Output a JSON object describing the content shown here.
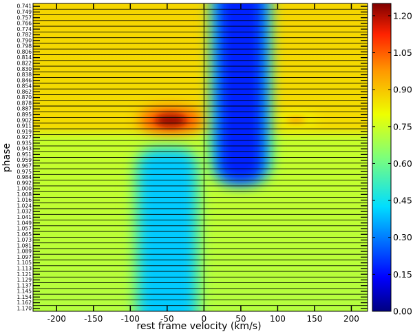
{
  "chart_data": {
    "type": "heatmap",
    "title": "",
    "xlabel": "rest frame velocity (km/s)",
    "ylabel": "phase",
    "xlim": [
      -232,
      222
    ],
    "x_ticks": [
      -200,
      -150,
      -100,
      -50,
      0,
      50,
      100,
      150,
      200
    ],
    "x_tick_labels": [
      "-200",
      "-150",
      "-100",
      "-50",
      "0",
      "50",
      "100",
      "150",
      "200"
    ],
    "phases": [
      "0.741",
      "0.749",
      "0.757",
      "0.766",
      "0.774",
      "0.782",
      "0.790",
      "0.798",
      "0.806",
      "0.814",
      "0.822",
      "0.830",
      "0.838",
      "0.846",
      "0.854",
      "0.862",
      "0.870",
      "0.878",
      "0.887",
      "0.895",
      "0.902",
      "0.911",
      "0.919",
      "0.927",
      "0.935",
      "0.943",
      "0.951",
      "0.959",
      "0.967",
      "0.975",
      "0.984",
      "0.992",
      "1.000",
      "1.008",
      "1.016",
      "1.024",
      "1.032",
      "1.041",
      "1.049",
      "1.057",
      "1.065",
      "1.073",
      "1.081",
      "1.089",
      "1.097",
      "1.105",
      "1.113",
      "1.121",
      "1.129",
      "1.137",
      "1.145",
      "1.154",
      "1.162",
      "1.170"
    ],
    "colorbar": {
      "vmin": 0.0,
      "vmax": 1.25,
      "ticks": [
        0.0,
        0.15,
        0.3,
        0.45,
        0.6,
        0.75,
        0.9,
        1.05,
        1.2
      ],
      "tick_labels": [
        "0.00",
        "0.15",
        "0.30",
        "0.45",
        "0.60",
        "0.75",
        "0.90",
        "1.05",
        "1.20"
      ],
      "colormap": "jet"
    },
    "zero_line_x": 0,
    "features": [
      {
        "kind": "background",
        "phase_range": [
          0.741,
          0.911
        ],
        "value": 0.87
      },
      {
        "kind": "background",
        "phase_range": [
          0.919,
          1.17
        ],
        "value": 0.72
      },
      {
        "kind": "emission_peak",
        "x": -45,
        "phase": 0.906,
        "value": 1.22
      },
      {
        "kind": "emission_peak",
        "x": 125,
        "phase": 0.906,
        "value": 0.95
      },
      {
        "kind": "absorption",
        "x": 50,
        "phase_range": [
          0.741,
          0.992
        ],
        "value": 0.18
      },
      {
        "kind": "absorption",
        "x": -50,
        "phase_range": [
          0.943,
          1.17
        ],
        "value": 0.4
      }
    ],
    "grid": false,
    "legend": "colorbar-right"
  }
}
